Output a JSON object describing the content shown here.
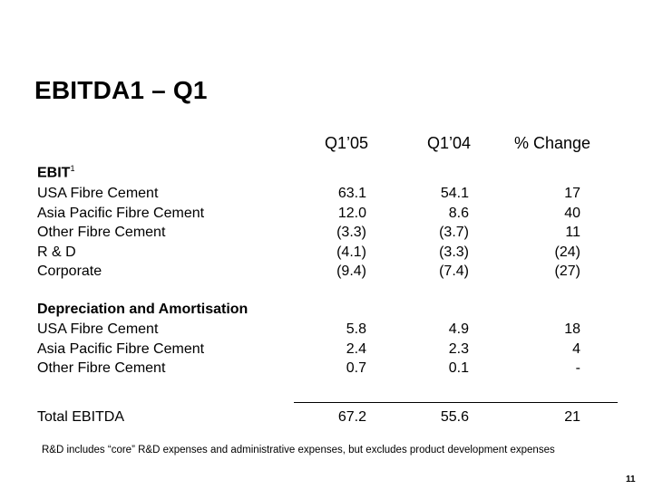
{
  "title": "EBITDA1 – Q1",
  "columns": [
    "Q1’05",
    "Q1’04",
    "% Change"
  ],
  "sections": {
    "ebit": {
      "heading": "EBIT",
      "heading_sup": "1",
      "rows": [
        {
          "label": "USA Fibre Cement",
          "q105": "63.1",
          "q104": "54.1",
          "change": "17"
        },
        {
          "label": "Asia Pacific Fibre Cement",
          "q105": "12.0",
          "q104": "8.6",
          "change": "40"
        },
        {
          "label": "Other Fibre Cement",
          "q105": "(3.3)",
          "q104": "(3.7)",
          "change": "11"
        },
        {
          "label": "R & D",
          "q105": "(4.1)",
          "q104": "(3.3)",
          "change": "(24)"
        },
        {
          "label": "Corporate",
          "q105": "(9.4)",
          "q104": "(7.4)",
          "change": "(27)"
        }
      ]
    },
    "da": {
      "heading": "Depreciation and Amortisation",
      "rows": [
        {
          "label": "USA Fibre Cement",
          "q105": "5.8",
          "q104": "4.9",
          "change": "18"
        },
        {
          "label": "Asia Pacific Fibre Cement",
          "q105": "2.4",
          "q104": "2.3",
          "change": "4"
        },
        {
          "label": "Other Fibre Cement",
          "q105": "0.7",
          "q104": "0.1",
          "change": "-"
        }
      ]
    }
  },
  "total": {
    "label": "Total EBITDA",
    "q105": "67.2",
    "q104": "55.6",
    "change": "21"
  },
  "footnote": "R&D includes “core” R&D expenses and administrative expenses, but excludes product development expenses",
  "page_number": "11"
}
